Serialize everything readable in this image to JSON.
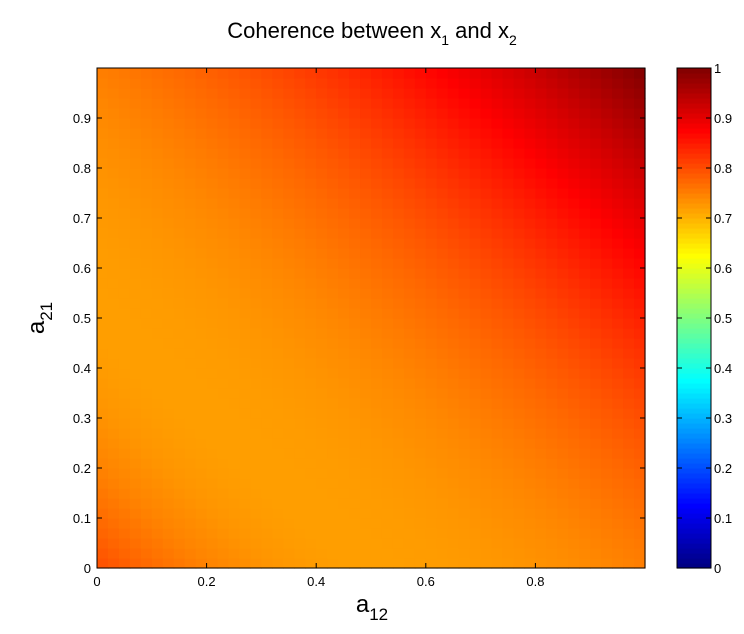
{
  "chart_data": {
    "type": "heatmap",
    "title": {
      "prefix": "Coherence between x",
      "sub1": "1",
      "middle": " and x",
      "sub2": "2"
    },
    "xlabel": {
      "base": "a",
      "sub": "12"
    },
    "ylabel": {
      "base": "a",
      "sub": "21"
    },
    "xlim": [
      0,
      1
    ],
    "ylim": [
      0,
      1
    ],
    "x_ticks": [
      "0",
      "0.2",
      "0.4",
      "0.6",
      "0.8"
    ],
    "y_ticks": [
      "0",
      "0.1",
      "0.2",
      "0.3",
      "0.4",
      "0.5",
      "0.6",
      "0.7",
      "0.8",
      "0.9"
    ],
    "colorbar": {
      "colormap": "jet",
      "range": [
        0,
        1
      ],
      "ticks": [
        "0",
        "0.1",
        "0.2",
        "0.3",
        "0.4",
        "0.5",
        "0.6",
        "0.7",
        "0.8",
        "0.9",
        "1"
      ]
    },
    "grid_resolution": 50,
    "values": {
      "description_of_field": "smooth field; minimum about 0.72 along band a12 + a21 ≈ 0.5, rising to about 0.80 at origin and to ~1.0 at (1,1)",
      "min_value": 0.72,
      "min_line_sum": 0.5,
      "value_at_origin": 0.8,
      "value_at_1_1": 1.0
    }
  }
}
